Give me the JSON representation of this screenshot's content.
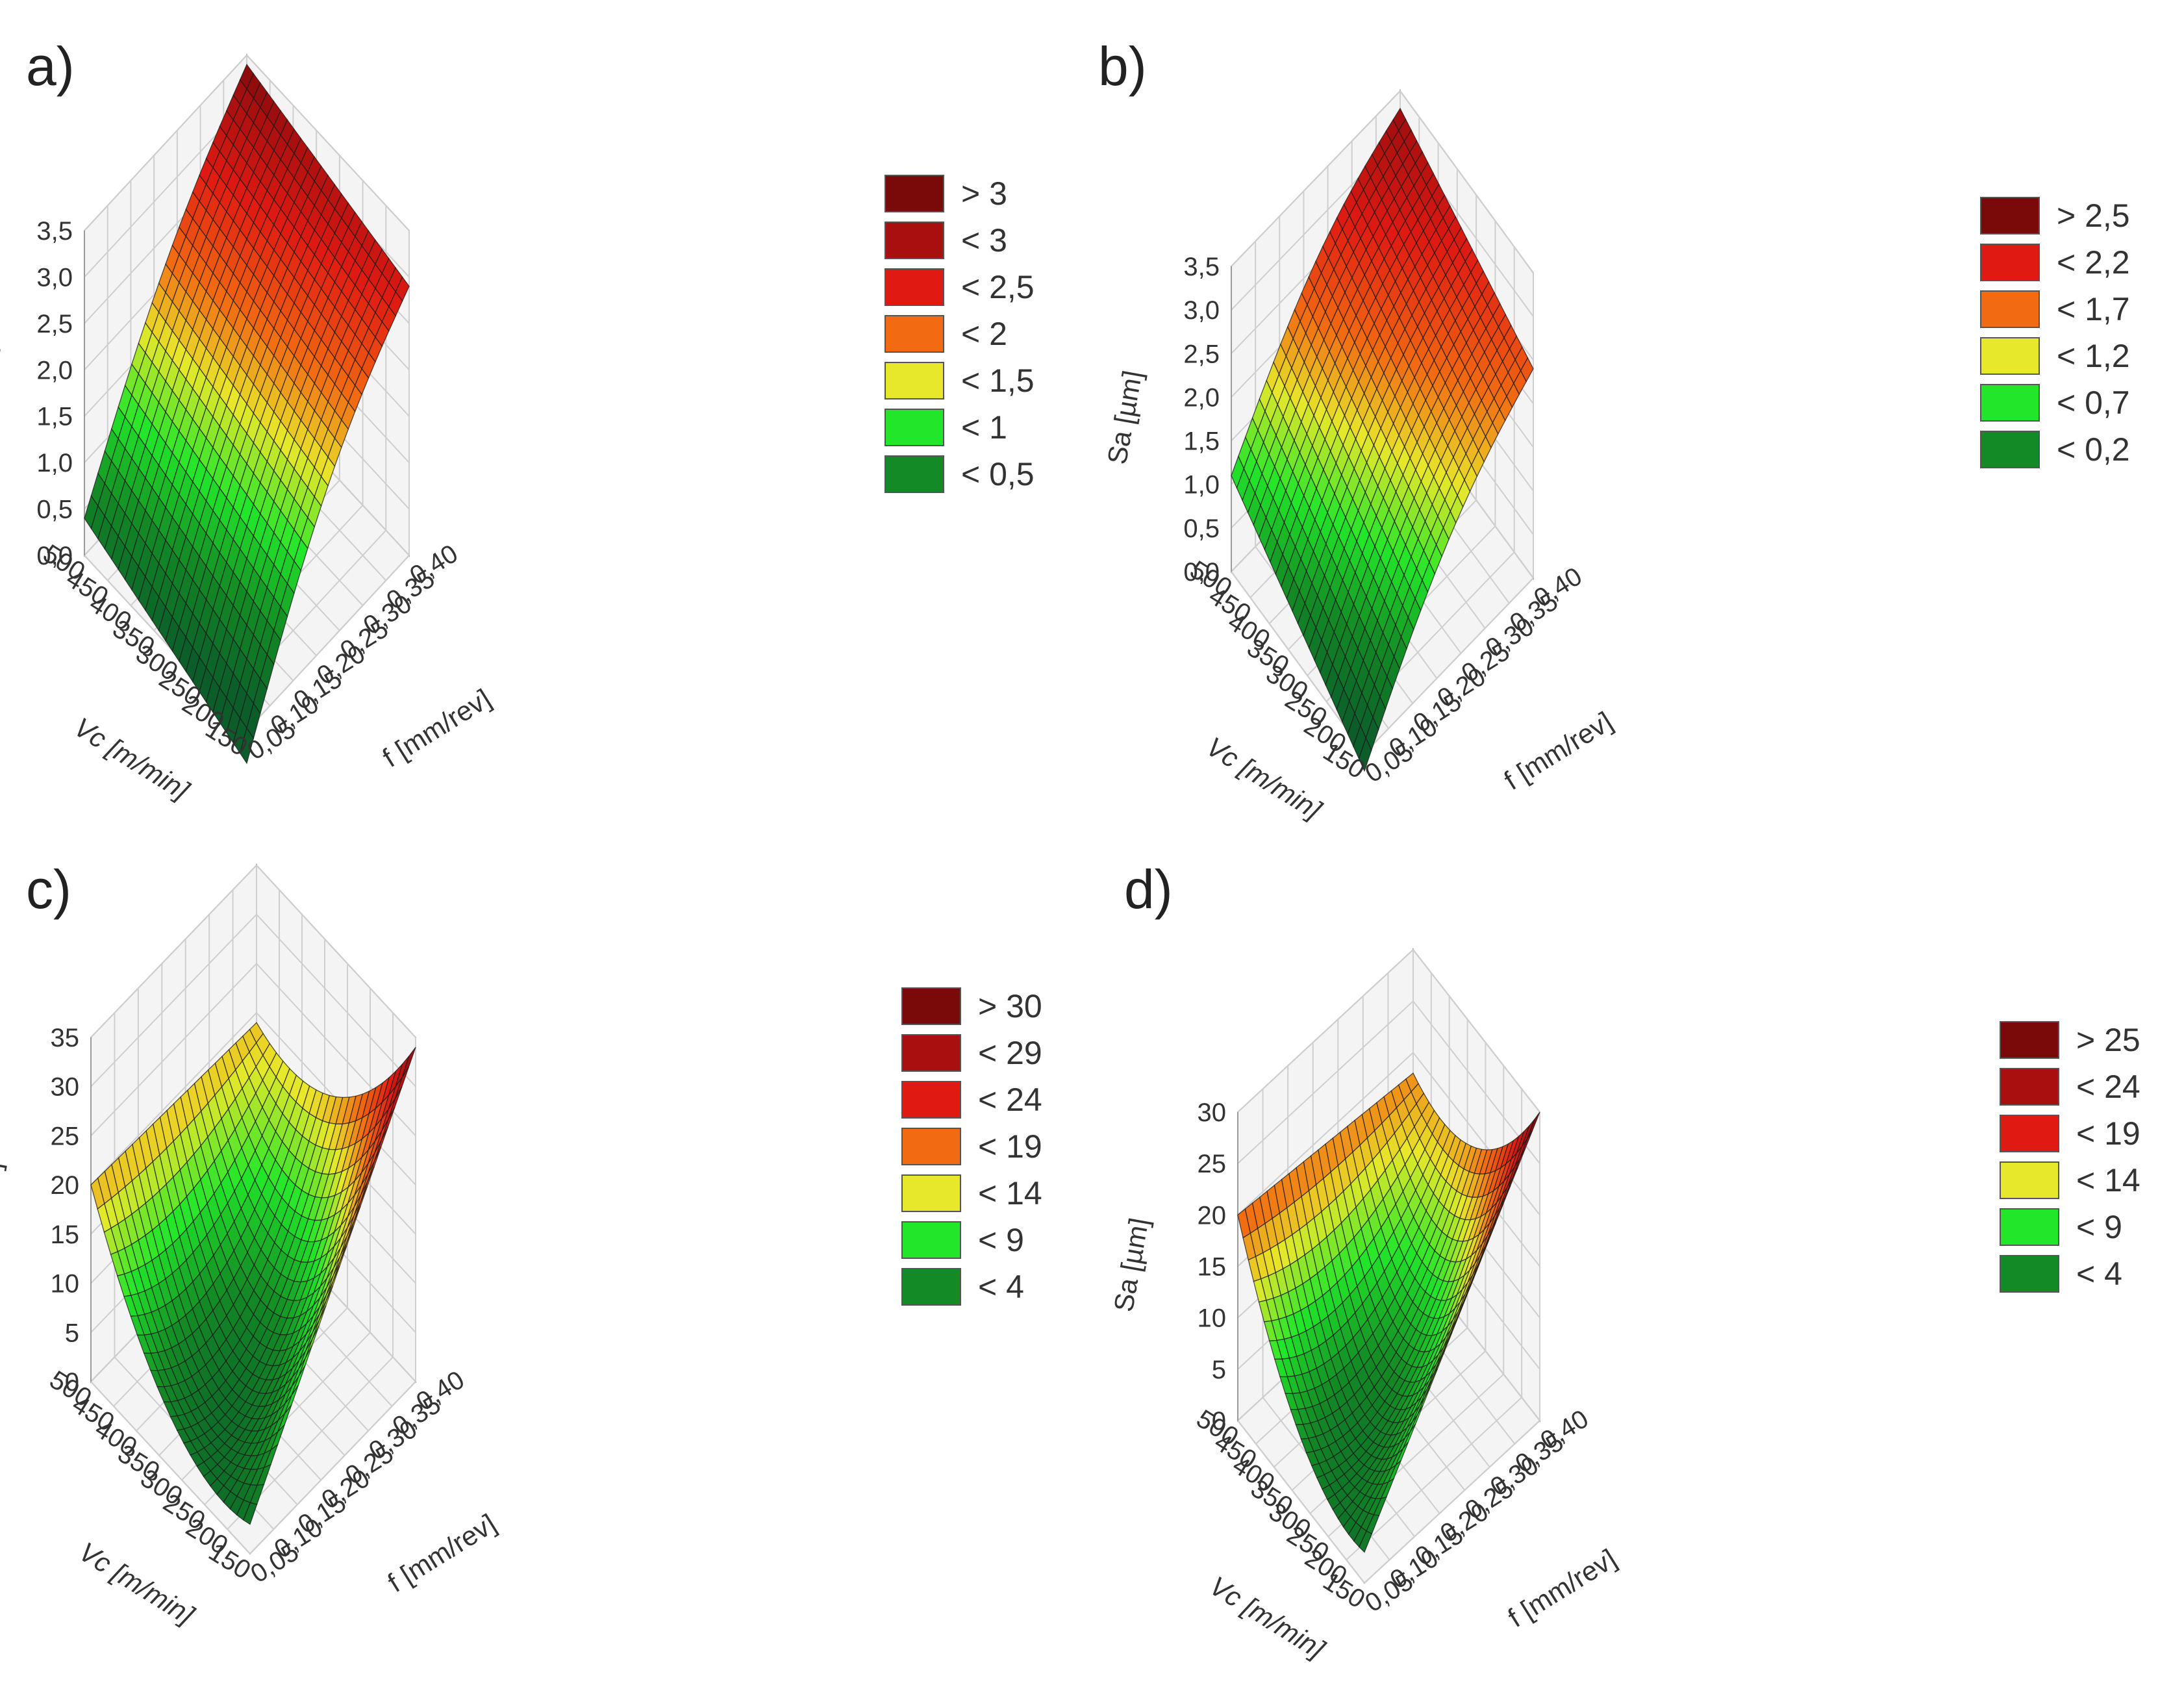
{
  "chart_data": [
    {
      "type": "surface3d",
      "panel_label": "a)",
      "zlabel": "Sa [µm]",
      "xlabel": "Vc [m/min]",
      "ylabel": "f [mm/rev]",
      "x_ticks": [
        "500",
        "450",
        "400",
        "350",
        "300",
        "250",
        "200",
        "150"
      ],
      "y_ticks": [
        "0,05",
        "0,10",
        "0,15",
        "0,20",
        "0,25",
        "0,30",
        "0,35",
        "0,40"
      ],
      "z_ticks": [
        "0,0",
        "0,5",
        "1,0",
        "1,5",
        "2,0",
        "2,5",
        "3,0",
        "3,5"
      ],
      "zlim": [
        0,
        3.5
      ],
      "corners": {
        "vc_high_f_low": 0.4,
        "vc_low_f_low": -0.35,
        "vc_high_f_high": 3.4,
        "vc_low_f_high": 2.9
      },
      "legend": [
        {
          "label": "> 3",
          "color": "#7a0a0a"
        },
        {
          "label": "< 3",
          "color": "#a80f0f"
        },
        {
          "label": "< 2,5",
          "color": "#e01a12"
        },
        {
          "label": "< 2",
          "color": "#f26b12"
        },
        {
          "label": "< 1,5",
          "color": "#e8e82a"
        },
        {
          "label": "< 1",
          "color": "#22e62a"
        },
        {
          "label": "< 0,5",
          "color": "#138a25"
        }
      ]
    },
    {
      "type": "surface3d",
      "panel_label": "b)",
      "zlabel": "Sa [µm]",
      "xlabel": "Vc [m/min]",
      "ylabel": "f [mm/rev]",
      "x_ticks": [
        "500",
        "450",
        "400",
        "350",
        "300",
        "250",
        "200",
        "150"
      ],
      "y_ticks": [
        "0,05",
        "0,10",
        "0,15",
        "0,20",
        "0,25",
        "0,30",
        "0,35",
        "0,40"
      ],
      "z_ticks": [
        "0,0",
        "0,5",
        "1,0",
        "1,5",
        "2,0",
        "2,5",
        "3,0",
        "3,5"
      ],
      "zlim": [
        0,
        3.5
      ],
      "corners": {
        "vc_high_f_low": 1.1,
        "vc_low_f_low": -0.2,
        "vc_high_f_high": 3.3,
        "vc_low_f_high": 2.4
      },
      "legend": [
        {
          "label": "> 2,5",
          "color": "#7a0a0a"
        },
        {
          "label": "< 2,2",
          "color": "#e01a12"
        },
        {
          "label": "< 1,7",
          "color": "#f26b12"
        },
        {
          "label": "< 1,2",
          "color": "#e8e82a"
        },
        {
          "label": "< 0,7",
          "color": "#22e62a"
        },
        {
          "label": "< 0,2",
          "color": "#138a25"
        }
      ]
    },
    {
      "type": "surface3d",
      "panel_label": "c)",
      "zlabel": "Sa [µm]",
      "xlabel": "Vc [m/min]",
      "ylabel": "f [mm/rev]",
      "x_ticks": [
        "500",
        "450",
        "400",
        "350",
        "300",
        "250",
        "200",
        "150"
      ],
      "y_ticks": [
        "0,05",
        "0,10",
        "0,15",
        "0,20",
        "0,25",
        "0,30",
        "0,35",
        "0,40"
      ],
      "z_ticks": [
        "0",
        "5",
        "10",
        "15",
        "20",
        "25",
        "30",
        "35"
      ],
      "zlim": [
        0,
        35
      ],
      "corners": {
        "vc_high_f_low": 20,
        "vc_low_f_low": 3,
        "vc_high_f_high": 19,
        "vc_low_f_high": 34
      },
      "legend": [
        {
          "label": "> 30",
          "color": "#7a0a0a"
        },
        {
          "label": "< 29",
          "color": "#a80f0f"
        },
        {
          "label": "< 24",
          "color": "#e01a12"
        },
        {
          "label": "< 19",
          "color": "#f26b12"
        },
        {
          "label": "< 14",
          "color": "#e8e82a"
        },
        {
          "label": "< 9",
          "color": "#22e62a"
        },
        {
          "label": "< 4",
          "color": "#138a25"
        }
      ]
    },
    {
      "type": "surface3d",
      "panel_label": "d)",
      "zlabel": "Sa [µm]",
      "xlabel": "Vc [m/min]",
      "ylabel": "f [mm/rev]",
      "x_ticks": [
        "500",
        "450",
        "400",
        "350",
        "300",
        "250",
        "200",
        "150"
      ],
      "y_ticks": [
        "0,05",
        "0,10",
        "0,15",
        "0,20",
        "0,25",
        "0,30",
        "0,35",
        "0,40"
      ],
      "z_ticks": [
        "0",
        "5",
        "10",
        "15",
        "20",
        "25",
        "30"
      ],
      "zlim": [
        0,
        30
      ],
      "corners": {
        "vc_high_f_low": 20,
        "vc_low_f_low": 3,
        "vc_high_f_high": 18,
        "vc_low_f_high": 30
      },
      "legend": [
        {
          "label": "> 25",
          "color": "#7a0a0a"
        },
        {
          "label": "< 24",
          "color": "#a80f0f"
        },
        {
          "label": "< 19",
          "color": "#e01a12"
        },
        {
          "label": "< 14",
          "color": "#e8e82a"
        },
        {
          "label": "< 9",
          "color": "#22e62a"
        },
        {
          "label": "< 4",
          "color": "#138a25"
        }
      ]
    }
  ]
}
